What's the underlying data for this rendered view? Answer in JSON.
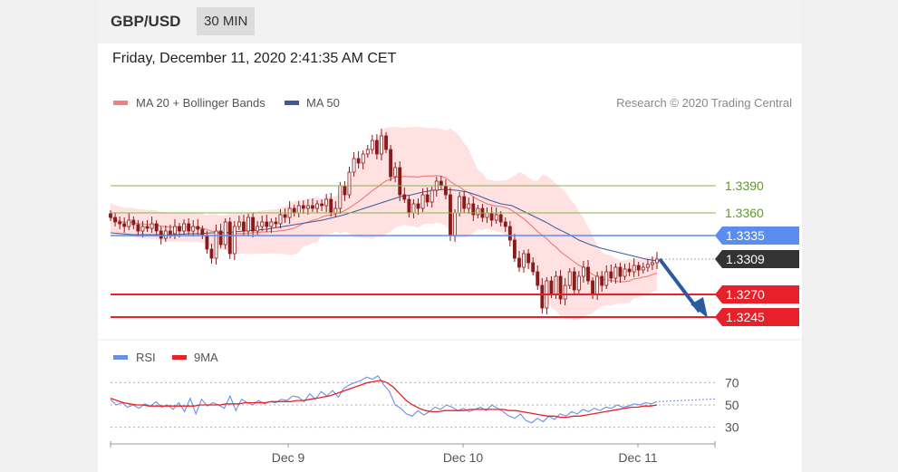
{
  "header": {
    "pair": "GBP/USD",
    "interval": "30 MIN"
  },
  "timestamp": "Friday, December 11, 2020 2:41:35 AM CET",
  "legend": {
    "ma20": "MA 20 + Bollinger Bands",
    "ma50": "MA 50",
    "rsi": "RSI",
    "rsi_ma": "9MA"
  },
  "copyright": "Research © 2020 Trading Central",
  "colors": {
    "ma20": "#f08080",
    "ma50": "#3b5b9b",
    "bands_fill": "#ffdcdc",
    "candle": "#8b1a1a",
    "green_level": "#8ab34a",
    "green_text": "#5a9e1e",
    "pivot": "#5b8def",
    "support": "#e8202a",
    "current": "#333333",
    "rsi": "#6b8ee8",
    "rsi_ma": "#e8202a"
  },
  "chart_data": {
    "type": "candlestick",
    "x_ticks": [
      "Dec 9",
      "Dec 10",
      "Dec 11"
    ],
    "price_ylim": [
      1.3225,
      1.3465
    ],
    "levels": [
      {
        "label": "1.3390",
        "value": 1.339,
        "style": "resistance"
      },
      {
        "label": "1.3360",
        "value": 1.336,
        "style": "resistance"
      },
      {
        "label": "1.3335",
        "value": 1.3335,
        "style": "pivot"
      },
      {
        "label": "1.3309",
        "value": 1.3309,
        "style": "current"
      },
      {
        "label": "1.3270",
        "value": 1.327,
        "style": "support"
      },
      {
        "label": "1.3245",
        "value": 1.3245,
        "style": "support"
      }
    ],
    "close_series": [
      1.3355,
      1.335,
      1.3348,
      1.3345,
      1.3352,
      1.3347,
      1.334,
      1.3345,
      1.3343,
      1.3348,
      1.334,
      1.3332,
      1.334,
      1.3337,
      1.3345,
      1.334,
      1.3348,
      1.334,
      1.3345,
      1.3342,
      1.3335,
      1.332,
      1.331,
      1.334,
      1.3325,
      1.335,
      1.3315,
      1.3345,
      1.335,
      1.334,
      1.3355,
      1.334,
      1.3345,
      1.335,
      1.3345,
      1.335,
      1.3348,
      1.3358,
      1.3355,
      1.3365,
      1.336,
      1.3368,
      1.3365,
      1.3368,
      1.3365,
      1.337,
      1.3368,
      1.3375,
      1.336,
      1.3365,
      1.339,
      1.338,
      1.3405,
      1.342,
      1.3415,
      1.3425,
      1.343,
      1.344,
      1.3425,
      1.3445,
      1.343,
      1.34,
      1.341,
      1.338,
      1.3375,
      1.336,
      1.337,
      1.3365,
      1.338,
      1.3372,
      1.3385,
      1.3395,
      1.339,
      1.338,
      1.3335,
      1.336,
      1.3378,
      1.3365,
      1.337,
      1.3358,
      1.3365,
      1.3355,
      1.336,
      1.3352,
      1.3358,
      1.335,
      1.3345,
      1.333,
      1.331,
      1.33,
      1.3315,
      1.3305,
      1.3295,
      1.328,
      1.3255,
      1.3285,
      1.327,
      1.329,
      1.3265,
      1.328,
      1.3295,
      1.3275,
      1.329,
      1.33,
      1.3285,
      1.327,
      1.329,
      1.328,
      1.3295,
      1.3288,
      1.33,
      1.329,
      1.3298,
      1.3295,
      1.3302,
      1.3297,
      1.33,
      1.3303,
      1.3305,
      1.3309
    ],
    "ma50_series": [
      1.3338,
      1.3337,
      1.3336,
      1.3336,
      1.3336,
      1.3336,
      1.3336,
      1.3337,
      1.3337,
      1.3338,
      1.3338,
      1.3339,
      1.334,
      1.3341,
      1.3342,
      1.3344,
      1.3346,
      1.3348,
      1.335,
      1.3352,
      1.3355,
      1.3358,
      1.3362,
      1.3366,
      1.337,
      1.3374,
      1.3378,
      1.338,
      1.3383,
      1.3385,
      1.3386,
      1.3385,
      1.3383,
      1.3379,
      1.3374,
      1.337,
      1.3368,
      1.3362,
      1.3356,
      1.335,
      1.3343,
      1.3337,
      1.333,
      1.3325,
      1.3321,
      1.3318,
      1.3315,
      1.3312,
      1.3309,
      1.3307
    ],
    "rsi_ylim": [
      20,
      80
    ],
    "rsi_ticks": [
      70,
      50,
      30
    ],
    "rsi_series": [
      55,
      50,
      52,
      48,
      50,
      47,
      51,
      49,
      53,
      48,
      50,
      46,
      52,
      44,
      56,
      42,
      55,
      49,
      52,
      50,
      47,
      58,
      45,
      55,
      52,
      50,
      54,
      51,
      53,
      52,
      55,
      54,
      58,
      57,
      53,
      60,
      55,
      62,
      58,
      63,
      57,
      65,
      68,
      70,
      72,
      75,
      73,
      76,
      68,
      62,
      50,
      47,
      42,
      40,
      45,
      41,
      44,
      48,
      46,
      50,
      48,
      45,
      47,
      44,
      46,
      48,
      45,
      50,
      47,
      44,
      40,
      38,
      42,
      36,
      34,
      38,
      35,
      40,
      37,
      42,
      40,
      44,
      42,
      46,
      44,
      47,
      45,
      48,
      47,
      50,
      48,
      49,
      51,
      50,
      52,
      51,
      53
    ],
    "rsi_ma_series": [
      56,
      54,
      52,
      51,
      50,
      50,
      49,
      49,
      49,
      49,
      49,
      49,
      49,
      49,
      50,
      50,
      50,
      50,
      51,
      51,
      51,
      52,
      52,
      52,
      52,
      53,
      53,
      53,
      53,
      54,
      54,
      55,
      56,
      57,
      58,
      60,
      62,
      64,
      66,
      68,
      70,
      71,
      72,
      70,
      66,
      60,
      54,
      50,
      47,
      45,
      44,
      44,
      45,
      45,
      45,
      45,
      46,
      46,
      46,
      46,
      46,
      46,
      45,
      45,
      44,
      43,
      42,
      41,
      40,
      40,
      39,
      39,
      40,
      40,
      41,
      42,
      43,
      44,
      45,
      46,
      47,
      48,
      48,
      49,
      49,
      50
    ]
  }
}
